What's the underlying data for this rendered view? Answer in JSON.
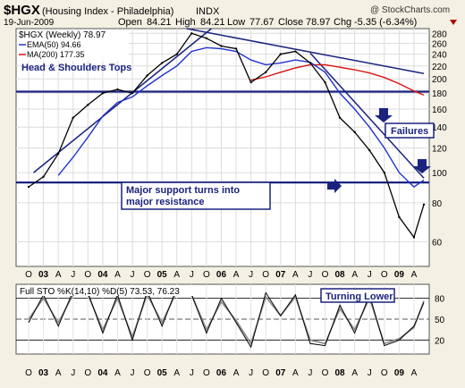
{
  "header": {
    "symbol": "$HGX",
    "name": "(Housing Index - Philadelphia)",
    "exchange": "INDX",
    "watermark": "@ StockCharts.com",
    "date": "19-Jun-2009",
    "open_label": "Open",
    "open": "84.21",
    "high_label": "High",
    "high": "84.21",
    "low_label": "Low",
    "low": "77.67",
    "close_label": "Close",
    "close": "78.97",
    "chg_label": "Chg",
    "chg": "-5.35 (-6.34%)"
  },
  "legend": [
    {
      "label": "$HGX (Weekly) 78.97",
      "color": "#000000"
    },
    {
      "label": "EMA(50) 94.66",
      "color": "#2233cc"
    },
    {
      "label": "MA(200) 177.35",
      "color": "#dd1111"
    }
  ],
  "annotations": {
    "hs": "Head & Shoulders Tops",
    "failures": "Failures",
    "support_1": "Major support turns into",
    "support_2": "major resistance"
  },
  "lower_panel": {
    "label": "Full STO %K(14,10) %D(5) 73.53, 76.23",
    "annotation": "Turning Lower",
    "y_ticks": [
      "80",
      "50",
      "20"
    ]
  },
  "colors": {
    "price": "#000000",
    "ema": "#2233cc",
    "ma": "#dd1111",
    "lines": "#1a237e",
    "background": "#ffffff",
    "sto_d": "#888888"
  },
  "chart_data": [
    {
      "type": "line",
      "title": "$HGX (Housing Index - Philadelphia) INDX",
      "scale": "log",
      "ylim": [
        50,
        290
      ],
      "y_ticks": [
        280,
        260,
        240,
        220,
        200,
        180,
        160,
        140,
        120,
        100,
        80,
        60
      ],
      "x_ticks": [
        "O",
        "03",
        "A",
        "J",
        "O",
        "04",
        "A",
        "J",
        "O",
        "05",
        "A",
        "J",
        "O",
        "06",
        "A",
        "J",
        "O",
        "07",
        "A",
        "J",
        "O",
        "08",
        "A",
        "J",
        "O",
        "09",
        "A"
      ],
      "x": [
        "2002-10",
        "2003-01",
        "2003-04",
        "2003-07",
        "2003-10",
        "2004-01",
        "2004-04",
        "2004-07",
        "2004-10",
        "2005-01",
        "2005-04",
        "2005-07",
        "2005-10",
        "2006-01",
        "2006-04",
        "2006-07",
        "2006-10",
        "2007-01",
        "2007-04",
        "2007-07",
        "2007-10",
        "2008-01",
        "2008-04",
        "2008-07",
        "2008-10",
        "2009-01",
        "2009-04",
        "2009-06"
      ],
      "series": [
        {
          "name": "$HGX (Weekly)",
          "values": [
            90,
            97,
            115,
            150,
            165,
            180,
            185,
            180,
            205,
            225,
            240,
            280,
            270,
            255,
            250,
            195,
            210,
            240,
            245,
            225,
            195,
            150,
            135,
            118,
            100,
            72,
            62,
            79
          ]
        },
        {
          "name": "EMA(50)",
          "values": [
            null,
            null,
            98,
            112,
            130,
            152,
            168,
            175,
            190,
            205,
            220,
            245,
            252,
            250,
            245,
            230,
            222,
            225,
            230,
            226,
            210,
            180,
            160,
            140,
            120,
            100,
            90,
            94.66
          ]
        },
        {
          "name": "MA(200)",
          "values": [
            null,
            null,
            null,
            null,
            null,
            null,
            null,
            null,
            null,
            null,
            null,
            null,
            null,
            null,
            null,
            198,
            203,
            210,
            217,
            222,
            222,
            218,
            214,
            209,
            202,
            193,
            183,
            177.35
          ]
        }
      ],
      "levels": [
        {
          "value": 182
        },
        {
          "value": 93
        }
      ]
    },
    {
      "type": "line",
      "title": "Full STO %K(14,10) %D(5) 73.53, 76.23",
      "ylim": [
        0,
        100
      ],
      "y_ticks": [
        80,
        50,
        20
      ],
      "x": [
        "2002-10",
        "2003-01",
        "2003-04",
        "2003-07",
        "2003-10",
        "2004-01",
        "2004-04",
        "2004-07",
        "2004-10",
        "2005-01",
        "2005-04",
        "2005-07",
        "2005-10",
        "2006-01",
        "2006-04",
        "2006-07",
        "2006-10",
        "2007-01",
        "2007-04",
        "2007-07",
        "2007-10",
        "2008-01",
        "2008-04",
        "2008-07",
        "2008-10",
        "2009-01",
        "2009-04",
        "2009-06"
      ],
      "series": [
        {
          "name": "%K",
          "values": [
            45,
            85,
            40,
            90,
            88,
            30,
            85,
            20,
            90,
            40,
            95,
            85,
            30,
            80,
            45,
            10,
            88,
            55,
            85,
            15,
            12,
            70,
            30,
            85,
            12,
            20,
            40,
            73.53
          ]
        },
        {
          "name": "%D",
          "values": [
            50,
            80,
            45,
            85,
            85,
            35,
            80,
            25,
            85,
            45,
            90,
            85,
            35,
            75,
            48,
            15,
            82,
            55,
            82,
            20,
            15,
            65,
            35,
            80,
            15,
            22,
            38,
            76.23
          ]
        }
      ]
    }
  ]
}
